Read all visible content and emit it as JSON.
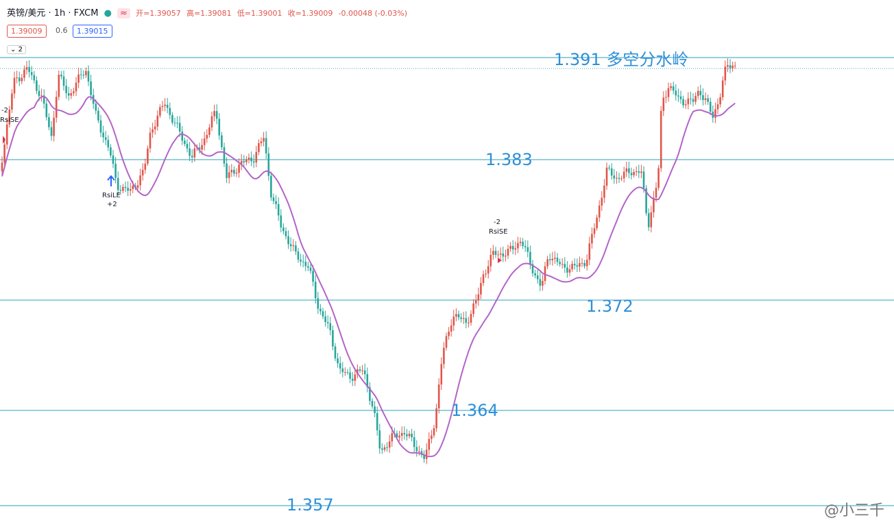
{
  "header": {
    "symbol": "英镑/美元 · 1h · FXCM",
    "open": "开=1.39057",
    "high": "高=1.39081",
    "low": "低=1.39001",
    "close": "收=1.39009",
    "change": "-0.00048 (-0.03%)"
  },
  "badges": {
    "bid": "1.39009",
    "spread": "0.6",
    "ask": "1.39015",
    "collapse": "2"
  },
  "levels": [
    "1.391 多空分水岭",
    "1.383",
    "1.372",
    "1.364",
    "1.357"
  ],
  "signals": [
    {
      "count": "-2",
      "label": "RsiSE"
    },
    {
      "count": "+2",
      "label": "RsiLE"
    },
    {
      "count": "-2",
      "label": "RsiSE"
    }
  ],
  "watermark": "@小三千"
}
